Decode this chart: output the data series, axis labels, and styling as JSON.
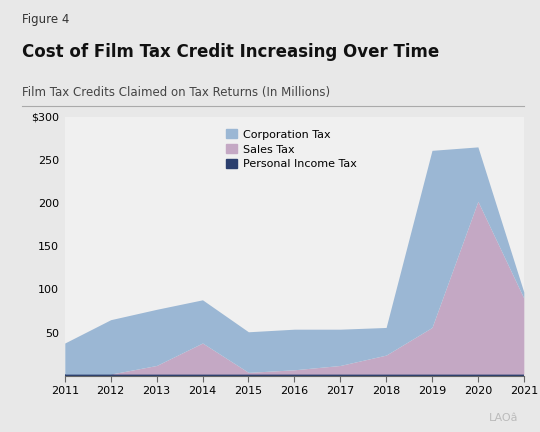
{
  "years": [
    2011,
    2012,
    2013,
    2014,
    2015,
    2016,
    2017,
    2018,
    2019,
    2020,
    2021
  ],
  "corporation_tax": [
    36,
    63,
    65,
    50,
    47,
    47,
    42,
    32,
    205,
    63,
    7
  ],
  "sales_tax": [
    0,
    0,
    10,
    36,
    2,
    5,
    10,
    22,
    54,
    200,
    88
  ],
  "personal_income_tax": [
    2,
    2,
    2,
    2,
    2,
    2,
    2,
    2,
    2,
    2,
    2
  ],
  "corp_tax_color": "#9bb7d4",
  "sales_tax_color": "#c4a8c4",
  "pit_color": "#2b3f6e",
  "title": "Cost of Film Tax Credit Increasing Over Time",
  "subtitle": "Film Tax Credits Claimed on Tax Returns (In Millions)",
  "figure_label": "Figure 4",
  "ylim": [
    0,
    300
  ],
  "yticks": [
    0,
    50,
    100,
    150,
    200,
    250,
    300
  ],
  "ytick_labels": [
    "",
    "50",
    "100",
    "150",
    "200",
    "250",
    "$300"
  ],
  "background_color": "#e8e8e8",
  "plot_bg_color": "#f0f0f0",
  "legend_labels": [
    "Corporation Tax",
    "Sales Tax",
    "Personal Income Tax"
  ],
  "logo_text": "LAOâ"
}
